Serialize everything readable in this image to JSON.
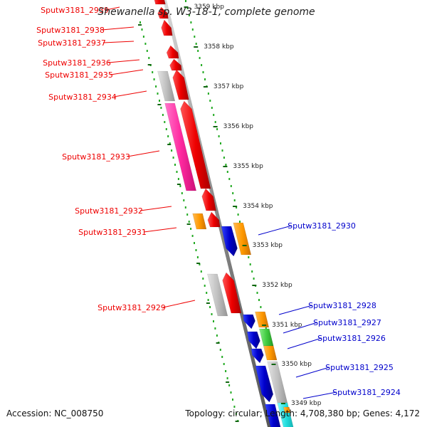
{
  "header": {
    "title": "Shewanella sp. W3-18-1, complete genome"
  },
  "footer": {
    "accession": "Accession: NC_008750",
    "topology": "Topology: circular; Length: 4,708,380 bp; Genes: 4,172"
  },
  "colors": {
    "forward_strand": "#ee0000",
    "reverse_strand": "#0000cc",
    "hypothetical": "#c0c0c0",
    "pink": "#ff2aa0",
    "orange": "#ff9900",
    "green": "#44cc44",
    "cyan": "#22dddd",
    "backbone": "#888888",
    "ruler_dots": "#22aa22",
    "tick_marks": "#116611"
  },
  "scale": {
    "ticks": [
      "3359 kbp",
      "3358 kbp",
      "3357 kbp",
      "3356 kbp",
      "3355 kbp",
      "3354 kbp",
      "3353 kbp",
      "3352 kbp",
      "3351 kbp",
      "3350 kbp",
      "3349 kbp"
    ]
  },
  "genes_forward": [
    {
      "label": "Sputw3181_2939",
      "color": "red"
    },
    {
      "label": "Sputw3181_2938",
      "color": "red"
    },
    {
      "label": "Sputw3181_2937",
      "color": "red"
    },
    {
      "label": "Sputw3181_2936",
      "color": "red"
    },
    {
      "label": "Sputw3181_2935",
      "color": "red"
    },
    {
      "label": "Sputw3181_2934",
      "color": "red"
    },
    {
      "label": "Sputw3181_2933",
      "color": "red"
    },
    {
      "label": "Sputw3181_2932",
      "color": "red"
    },
    {
      "label": "Sputw3181_2931",
      "color": "red"
    },
    {
      "label": "Sputw3181_2929",
      "color": "red"
    }
  ],
  "genes_reverse": [
    {
      "label": "Sputw3181_2930",
      "color": "blue"
    },
    {
      "label": "Sputw3181_2928",
      "color": "blue"
    },
    {
      "label": "Sputw3181_2927",
      "color": "blue"
    },
    {
      "label": "Sputw3181_2926",
      "color": "blue"
    },
    {
      "label": "Sputw3181_2925",
      "color": "blue"
    },
    {
      "label": "Sputw3181_2924",
      "color": "blue"
    }
  ]
}
